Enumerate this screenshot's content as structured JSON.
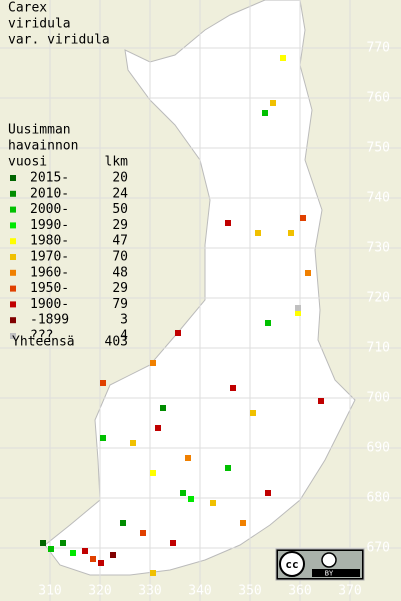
{
  "title": [
    "Carex",
    "viridula",
    "var. viridula"
  ],
  "legend": {
    "header": [
      "Uusimman",
      "havainnon",
      "vuosi"
    ],
    "count_header": "lkm",
    "rows": [
      {
        "label": "2015-",
        "count": 20,
        "color": "#006400"
      },
      {
        "label": "2010-",
        "count": 24,
        "color": "#008c00"
      },
      {
        "label": "2000-",
        "count": 50,
        "color": "#00c000"
      },
      {
        "label": "1990-",
        "count": 29,
        "color": "#00e800"
      },
      {
        "label": "1980-",
        "count": 47,
        "color": "#ffff00"
      },
      {
        "label": "1970-",
        "count": 70,
        "color": "#f0c000"
      },
      {
        "label": "1960-",
        "count": 48,
        "color": "#f08000"
      },
      {
        "label": "1950-",
        "count": 29,
        "color": "#e04000"
      },
      {
        "label": "1900-",
        "count": 79,
        "color": "#c00000"
      },
      {
        "label": "-1899",
        "count": 3,
        "color": "#800000"
      },
      {
        "label": "???",
        "count": 4,
        "color": "#c0c0c0"
      }
    ],
    "total_label": "Yhteensä",
    "total": 403
  },
  "grid": {
    "y_labels": [
      770,
      760,
      750,
      740,
      730,
      720,
      710,
      700,
      690,
      680,
      670
    ],
    "x_labels": [
      310,
      320,
      330,
      340,
      350,
      360,
      370
    ]
  },
  "license": {
    "logo": "cc",
    "text": "BY"
  }
}
